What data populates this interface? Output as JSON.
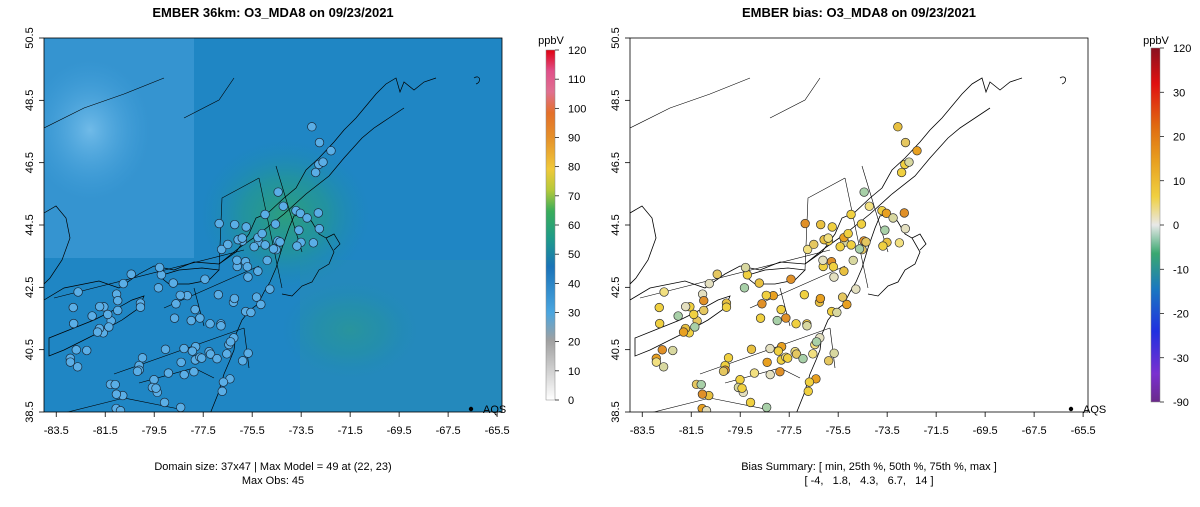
{
  "chart_data": [
    {
      "type": "heatmap",
      "title": "EMBER 36km: O3_MDA8 on 09/23/2021",
      "x_ticks": [
        "-83.5",
        "-81.5",
        "-79.5",
        "-77.5",
        "-75.5",
        "-73.5",
        "-71.5",
        "-69.5",
        "-67.5",
        "-65.5"
      ],
      "y_ticks": [
        "38.5",
        "40.5",
        "42.5",
        "44.5",
        "46.5",
        "48.5",
        "50.5"
      ],
      "xlim": [
        -84,
        -65.3
      ],
      "ylim": [
        38.5,
        50.5
      ],
      "colorbar": {
        "unit": "ppbV",
        "ticks": [
          "0",
          "10",
          "20",
          "30",
          "40",
          "50",
          "60",
          "70",
          "80",
          "90",
          "100",
          "110",
          "120"
        ],
        "range": [
          0,
          120
        ]
      },
      "legend_label": "AQS",
      "summary_line1": "Domain size: 37x47 | Max Model = 49 at (22, 23)",
      "summary_line2": "Max Obs: 45"
    },
    {
      "type": "scatter",
      "title": "EMBER bias: O3_MDA8 on 09/23/2021",
      "x_ticks": [
        "-83.5",
        "-81.5",
        "-79.5",
        "-77.5",
        "-75.5",
        "-73.5",
        "-71.5",
        "-69.5",
        "-67.5",
        "-65.5"
      ],
      "y_ticks": [
        "38.5",
        "40.5",
        "42.5",
        "44.5",
        "46.5",
        "48.5",
        "50.5"
      ],
      "xlim": [
        -84,
        -65.3
      ],
      "ylim": [
        38.5,
        50.5
      ],
      "colorbar": {
        "unit": "ppbV",
        "ticks": [
          "120",
          "30",
          "20",
          "10",
          "0",
          "-10",
          "-20",
          "-30",
          "-90"
        ],
        "range": [
          -90,
          120
        ]
      },
      "legend_label": "AQS",
      "summary_line1": "Bias Summary: [ min, 25th %, 50th %, 75th %, max ]",
      "summary_line2": "[ -4,   1.8,   4.3,   6.7,   14 ]",
      "bias_summary": {
        "min": -4,
        "p25": 1.8,
        "p50": 4.3,
        "p75": 6.7,
        "max": 14
      }
    }
  ]
}
